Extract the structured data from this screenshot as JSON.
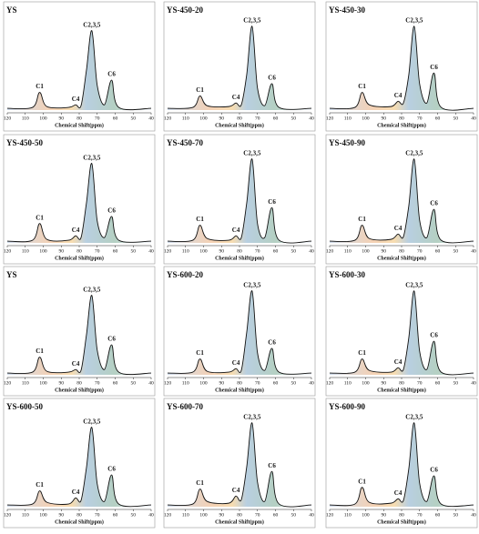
{
  "chart_data": [
    {
      "type": "line",
      "title": "YS",
      "xlabel": "Chemical Shift(ppm)",
      "x": [
        120,
        106,
        102,
        98,
        86,
        82,
        79,
        76,
        73,
        70,
        66,
        62,
        58,
        40
      ],
      "values": [
        2,
        3,
        20,
        4,
        3,
        6,
        5,
        45,
        90,
        28,
        6,
        34,
        3,
        2
      ],
      "annotations": [
        "C1",
        "C4",
        "C2,3,5",
        "C6"
      ],
      "xlim": [
        120,
        40
      ],
      "ylim": [
        0,
        100
      ],
      "xticks": [
        120,
        110,
        100,
        90,
        80,
        70,
        60,
        50,
        40
      ]
    },
    {
      "type": "line",
      "title": "YS-450-20",
      "xlabel": "Chemical Shift(ppm)",
      "x": [
        120,
        106,
        102,
        98,
        86,
        82,
        79,
        76,
        73,
        70,
        66,
        62,
        58,
        40
      ],
      "values": [
        2,
        3,
        16,
        5,
        4,
        8,
        6,
        40,
        95,
        25,
        5,
        30,
        3,
        2
      ],
      "annotations": [
        "C1",
        "C4",
        "C2,3,5",
        "C6"
      ],
      "xlim": [
        120,
        40
      ],
      "ylim": [
        0,
        100
      ],
      "xticks": [
        120,
        110,
        100,
        90,
        80,
        70,
        60,
        50,
        40
      ]
    },
    {
      "type": "line",
      "title": "YS-450-30",
      "xlabel": "Chemical Shift(ppm)",
      "x": [
        120,
        106,
        102,
        98,
        86,
        82,
        79,
        76,
        73,
        70,
        66,
        62,
        58,
        40
      ],
      "values": [
        2,
        3,
        20,
        6,
        4,
        10,
        8,
        40,
        95,
        30,
        8,
        42,
        3,
        2
      ],
      "annotations": [
        "C1",
        "C4",
        "C2,3,5",
        "C6"
      ],
      "xlim": [
        120,
        40
      ],
      "ylim": [
        0,
        100
      ],
      "xticks": [
        120,
        110,
        100,
        90,
        80,
        70,
        60,
        50,
        40
      ]
    },
    {
      "type": "line",
      "title": "YS-450-50",
      "xlabel": "Chemical Shift(ppm)",
      "x": [
        120,
        106,
        102,
        98,
        86,
        82,
        79,
        76,
        73,
        70,
        66,
        62,
        58,
        40
      ],
      "values": [
        2,
        3,
        22,
        4,
        3,
        8,
        6,
        45,
        90,
        25,
        6,
        30,
        3,
        2
      ],
      "annotations": [
        "C1",
        "C4",
        "C2,3,5",
        "C6"
      ],
      "xlim": [
        120,
        40
      ],
      "ylim": [
        0,
        100
      ],
      "xticks": [
        120,
        110,
        100,
        90,
        80,
        70,
        60,
        50,
        40
      ]
    },
    {
      "type": "line",
      "title": "YS-450-70",
      "xlabel": "Chemical Shift(ppm)",
      "x": [
        120,
        106,
        102,
        98,
        86,
        82,
        79,
        76,
        73,
        70,
        66,
        62,
        58,
        40
      ],
      "values": [
        2,
        3,
        20,
        5,
        3,
        8,
        6,
        45,
        95,
        22,
        6,
        40,
        3,
        2
      ],
      "annotations": [
        "C1",
        "C4",
        "C2,3,5",
        "C6"
      ],
      "xlim": [
        120,
        40
      ],
      "ylim": [
        0,
        100
      ],
      "xticks": [
        120,
        110,
        100,
        90,
        80,
        70,
        60,
        50,
        40
      ]
    },
    {
      "type": "line",
      "title": "YS-450-90",
      "xlabel": "Chemical Shift(ppm)",
      "x": [
        120,
        106,
        102,
        98,
        86,
        82,
        79,
        76,
        73,
        70,
        66,
        62,
        58,
        40
      ],
      "values": [
        2,
        3,
        20,
        5,
        4,
        10,
        7,
        42,
        95,
        26,
        6,
        38,
        3,
        2
      ],
      "annotations": [
        "C1",
        "C4",
        "C2,3,5",
        "C6"
      ],
      "xlim": [
        120,
        40
      ],
      "ylim": [
        0,
        100
      ],
      "xticks": [
        120,
        110,
        100,
        90,
        80,
        70,
        60,
        50,
        40
      ]
    },
    {
      "type": "line",
      "title": "YS",
      "xlabel": "Chemical Shift(ppm)",
      "x": [
        120,
        106,
        102,
        98,
        86,
        82,
        79,
        76,
        73,
        70,
        66,
        62,
        58,
        40
      ],
      "values": [
        2,
        3,
        20,
        4,
        3,
        6,
        5,
        45,
        90,
        28,
        6,
        34,
        3,
        2
      ],
      "annotations": [
        "C1",
        "C4",
        "C2,3,5",
        "C6"
      ],
      "xlim": [
        120,
        40
      ],
      "ylim": [
        0,
        100
      ],
      "xticks": [
        120,
        110,
        100,
        90,
        80,
        70,
        60,
        50,
        40
      ]
    },
    {
      "type": "line",
      "title": "YS-600-20",
      "xlabel": "Chemical Shift(ppm)",
      "x": [
        120,
        106,
        102,
        98,
        86,
        82,
        79,
        76,
        73,
        70,
        66,
        62,
        58,
        40
      ],
      "values": [
        2,
        3,
        18,
        4,
        3,
        7,
        5,
        48,
        95,
        25,
        5,
        30,
        3,
        2
      ],
      "annotations": [
        "C1",
        "C4",
        "C2,3,5",
        "C6"
      ],
      "xlim": [
        120,
        40
      ],
      "ylim": [
        0,
        100
      ],
      "xticks": [
        120,
        110,
        100,
        90,
        80,
        70,
        60,
        50,
        40
      ]
    },
    {
      "type": "line",
      "title": "YS-600-30",
      "xlabel": "Chemical Shift(ppm)",
      "x": [
        120,
        106,
        102,
        98,
        86,
        82,
        79,
        76,
        73,
        70,
        66,
        62,
        58,
        40
      ],
      "values": [
        2,
        3,
        18,
        5,
        3,
        8,
        6,
        42,
        95,
        27,
        6,
        38,
        3,
        2
      ],
      "annotations": [
        "C1",
        "C4",
        "C2,3,5",
        "C6"
      ],
      "xlim": [
        120,
        40
      ],
      "ylim": [
        0,
        100
      ],
      "xticks": [
        120,
        110,
        100,
        90,
        80,
        70,
        60,
        50,
        40
      ]
    },
    {
      "type": "line",
      "title": "YS-600-50",
      "xlabel": "Chemical Shift(ppm)",
      "x": [
        120,
        106,
        102,
        98,
        86,
        82,
        79,
        76,
        73,
        70,
        66,
        62,
        58,
        40
      ],
      "values": [
        2,
        3,
        18,
        5,
        3,
        10,
        7,
        44,
        90,
        26,
        6,
        36,
        3,
        2
      ],
      "annotations": [
        "C1",
        "C4",
        "C2,3,5",
        "C6"
      ],
      "xlim": [
        120,
        40
      ],
      "ylim": [
        0,
        100
      ],
      "xticks": [
        120,
        110,
        100,
        90,
        80,
        70,
        60,
        50,
        40
      ]
    },
    {
      "type": "line",
      "title": "YS-600-70",
      "xlabel": "Chemical Shift(ppm)",
      "x": [
        120,
        106,
        102,
        98,
        86,
        82,
        79,
        76,
        73,
        70,
        66,
        62,
        58,
        40
      ],
      "values": [
        2,
        3,
        20,
        6,
        4,
        12,
        8,
        45,
        95,
        28,
        6,
        40,
        3,
        2
      ],
      "annotations": [
        "C1",
        "C4",
        "C2,3,5",
        "C6"
      ],
      "xlim": [
        120,
        40
      ],
      "ylim": [
        0,
        100
      ],
      "xticks": [
        120,
        110,
        100,
        90,
        80,
        70,
        60,
        50,
        40
      ]
    },
    {
      "type": "line",
      "title": "YS-600-90",
      "xlabel": "Chemical Shift(ppm)",
      "x": [
        120,
        106,
        102,
        98,
        86,
        82,
        79,
        76,
        73,
        70,
        66,
        62,
        58,
        40
      ],
      "values": [
        2,
        3,
        22,
        5,
        4,
        9,
        7,
        43,
        95,
        27,
        6,
        35,
        3,
        2
      ],
      "annotations": [
        "C1",
        "C4",
        "C2,3,5",
        "C6"
      ],
      "xlim": [
        120,
        40
      ],
      "ylim": [
        0,
        100
      ],
      "xticks": [
        120,
        110,
        100,
        90,
        80,
        70,
        60,
        50,
        40
      ]
    }
  ]
}
